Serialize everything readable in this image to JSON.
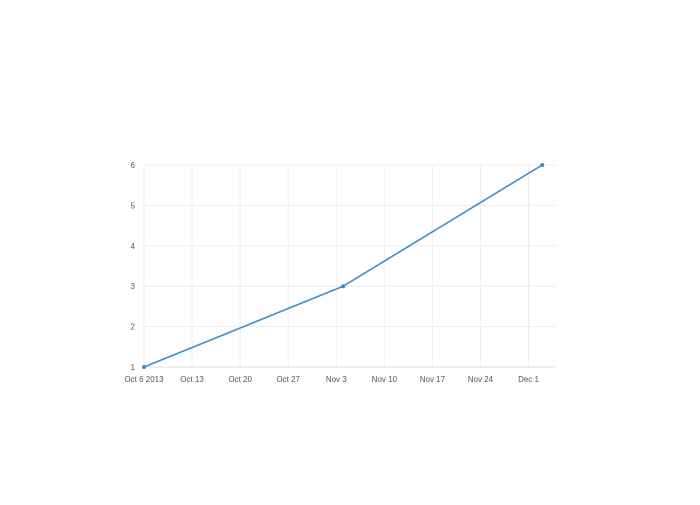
{
  "chart_data": {
    "type": "line",
    "x_type": "date",
    "x": [
      "2013-10-06",
      "2013-11-04",
      "2013-12-03"
    ],
    "series": [
      {
        "values": [
          1,
          3,
          6
        ],
        "color": "#3d8ec9"
      }
    ],
    "xlim": [
      "2013-10-06",
      "2013-12-05"
    ],
    "ylim": [
      1,
      6
    ],
    "x_ticks": [
      {
        "value": "2013-10-06",
        "label": "Oct 6 2013"
      },
      {
        "value": "2013-10-13",
        "label": "Oct 13"
      },
      {
        "value": "2013-10-20",
        "label": "Oct 20"
      },
      {
        "value": "2013-10-27",
        "label": "Oct 27"
      },
      {
        "value": "2013-11-03",
        "label": "Nov 3"
      },
      {
        "value": "2013-11-10",
        "label": "Nov 10"
      },
      {
        "value": "2013-11-17",
        "label": "Nov 17"
      },
      {
        "value": "2013-11-24",
        "label": "Nov 24"
      },
      {
        "value": "2013-12-01",
        "label": "Dec 1"
      }
    ],
    "y_ticks": [
      {
        "value": 1,
        "label": "1"
      },
      {
        "value": 2,
        "label": "2"
      },
      {
        "value": 3,
        "label": "3"
      },
      {
        "value": 4,
        "label": "4"
      },
      {
        "value": 5,
        "label": "5"
      },
      {
        "value": 6,
        "label": "6"
      }
    ],
    "grid": true,
    "grid_color": "#eeeeee",
    "axis_color": "#dddddd",
    "tick_label_color": "#555555",
    "title": "",
    "xlabel": "",
    "ylabel": ""
  }
}
